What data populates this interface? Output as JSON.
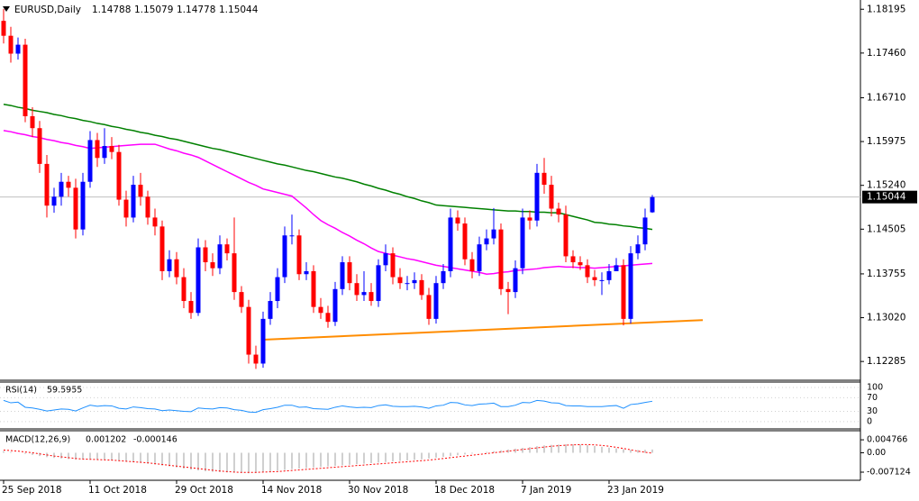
{
  "chart_data": [
    {
      "type": "candlestick",
      "title": "EURUSD,Daily",
      "categories": [
        "25 Sep 2018",
        null,
        null,
        null,
        null,
        null,
        null,
        null,
        null,
        null,
        null,
        null,
        "11 Oct 2018",
        null,
        null,
        null,
        null,
        null,
        null,
        null,
        null,
        null,
        null,
        null,
        "29 Oct 2018",
        null,
        null,
        null,
        null,
        null,
        null,
        null,
        null,
        null,
        null,
        null,
        "14 Nov 2018",
        null,
        null,
        null,
        null,
        null,
        null,
        null,
        null,
        null,
        null,
        null,
        "30 Nov 2018",
        null,
        null,
        null,
        null,
        null,
        null,
        null,
        null,
        null,
        null,
        null,
        "18 Dec 2018",
        null,
        null,
        null,
        null,
        null,
        null,
        null,
        null,
        null,
        null,
        null,
        "7 Jan 2019",
        null,
        null,
        null,
        null,
        null,
        null,
        null,
        null,
        null,
        null,
        null,
        "23 Jan 2019",
        null,
        null,
        null,
        null,
        null,
        null
      ],
      "open": [
        1.18,
        1.1775,
        1.1745,
        1.176,
        1.164,
        1.162,
        1.156,
        1.149,
        1.1505,
        1.153,
        1.152,
        1.145,
        1.153,
        1.16,
        1.157,
        1.159,
        1.158,
        1.15,
        1.147,
        1.1525,
        1.1505,
        1.147,
        1.1455,
        1.138,
        1.14,
        1.137,
        1.133,
        1.131,
        1.142,
        1.1395,
        1.1385,
        1.1425,
        1.141,
        1.1345,
        1.132,
        1.124,
        1.1225,
        1.13,
        1.133,
        1.137,
        1.144,
        1.144,
        1.1375,
        1.138,
        1.132,
        1.131,
        1.1295,
        1.135,
        1.1395,
        1.136,
        1.134,
        1.1345,
        1.133,
        1.139,
        1.141,
        1.137,
        1.136,
        1.136,
        1.1365,
        1.134,
        1.13,
        1.136,
        1.138,
        1.147,
        1.146,
        1.14,
        1.138,
        1.1425,
        1.1435,
        1.145,
        1.135,
        1.1345,
        1.1385,
        1.147,
        1.1465,
        1.1545,
        1.1525,
        1.1485,
        1.1475,
        1.1405,
        1.1395,
        1.139,
        1.137,
        1.1365,
        1.1365,
        1.138,
        1.139,
        1.13,
        1.141,
        1.1425,
        1.14788
      ],
      "high": [
        1.182,
        1.179,
        1.1772,
        1.177,
        1.1655,
        1.1632,
        1.1575,
        1.152,
        1.1545,
        1.154,
        1.1535,
        1.1545,
        1.1615,
        1.1612,
        1.162,
        1.1605,
        1.1592,
        1.1515,
        1.154,
        1.1545,
        1.1515,
        1.1485,
        1.1465,
        1.1415,
        1.1412,
        1.1385,
        1.1345,
        1.1435,
        1.1432,
        1.141,
        1.144,
        1.1435,
        1.147,
        1.1355,
        1.1332,
        1.1255,
        1.1312,
        1.1345,
        1.1385,
        1.1455,
        1.1475,
        1.145,
        1.1395,
        1.139,
        1.1335,
        1.1322,
        1.1362,
        1.1405,
        1.1405,
        1.1375,
        1.138,
        1.136,
        1.14,
        1.1425,
        1.142,
        1.1385,
        1.1372,
        1.1378,
        1.1375,
        1.1352,
        1.1372,
        1.1392,
        1.1485,
        1.1482,
        1.147,
        1.1412,
        1.1438,
        1.145,
        1.1486,
        1.146,
        1.1362,
        1.1398,
        1.1485,
        1.1482,
        1.156,
        1.157,
        1.154,
        1.1495,
        1.149,
        1.1415,
        1.1405,
        1.14,
        1.1382,
        1.1378,
        1.1392,
        1.1402,
        1.14,
        1.1422,
        1.144,
        1.1485,
        1.15079
      ],
      "low": [
        1.1762,
        1.173,
        1.1735,
        1.163,
        1.1605,
        1.1545,
        1.147,
        1.1478,
        1.149,
        1.1505,
        1.1435,
        1.144,
        1.152,
        1.1555,
        1.156,
        1.1568,
        1.149,
        1.1455,
        1.1462,
        1.149,
        1.1458,
        1.144,
        1.1365,
        1.137,
        1.1358,
        1.1318,
        1.13,
        1.1305,
        1.138,
        1.1372,
        1.1375,
        1.1398,
        1.1332,
        1.131,
        1.1225,
        1.1216,
        1.1218,
        1.129,
        1.1318,
        1.136,
        1.1425,
        1.1365,
        1.1365,
        1.131,
        1.13,
        1.1285,
        1.1288,
        1.134,
        1.1348,
        1.133,
        1.133,
        1.1322,
        1.132,
        1.138,
        1.1358,
        1.135,
        1.1348,
        1.135,
        1.1332,
        1.129,
        1.1292,
        1.135,
        1.137,
        1.1448,
        1.139,
        1.1368,
        1.1372,
        1.1415,
        1.1425,
        1.134,
        1.1308,
        1.1335,
        1.1375,
        1.145,
        1.1455,
        1.151,
        1.1472,
        1.1462,
        1.1395,
        1.1385,
        1.1382,
        1.136,
        1.1355,
        1.134,
        1.1358,
        1.138,
        1.1289,
        1.1292,
        1.14,
        1.1415,
        1.14778
      ],
      "close": [
        1.1775,
        1.1745,
        1.176,
        1.164,
        1.162,
        1.156,
        1.149,
        1.1505,
        1.153,
        1.152,
        1.145,
        1.153,
        1.16,
        1.157,
        1.159,
        1.158,
        1.15,
        1.147,
        1.1525,
        1.1505,
        1.147,
        1.1455,
        1.138,
        1.14,
        1.137,
        1.133,
        1.131,
        1.142,
        1.1395,
        1.1385,
        1.1425,
        1.141,
        1.1345,
        1.132,
        1.124,
        1.1225,
        1.13,
        1.133,
        1.137,
        1.144,
        1.144,
        1.1375,
        1.138,
        1.132,
        1.131,
        1.1295,
        1.135,
        1.1395,
        1.136,
        1.134,
        1.1345,
        1.133,
        1.139,
        1.141,
        1.137,
        1.136,
        1.136,
        1.1365,
        1.134,
        1.13,
        1.136,
        1.138,
        1.147,
        1.146,
        1.14,
        1.138,
        1.1425,
        1.1435,
        1.145,
        1.135,
        1.1345,
        1.1385,
        1.147,
        1.1465,
        1.1545,
        1.1525,
        1.1485,
        1.1475,
        1.1405,
        1.1395,
        1.139,
        1.137,
        1.1365,
        1.1365,
        1.138,
        1.139,
        1.13,
        1.141,
        1.1425,
        1.147,
        1.15044
      ],
      "bull_color": "#0000ff",
      "bear_color": "#ff0000",
      "series": [
        {
          "color": "#008000",
          "values": [
            1.166,
            1.1658,
            1.1655,
            1.1653,
            1.165,
            1.1648,
            1.1646,
            1.1643,
            1.1641,
            1.1638,
            1.1636,
            1.1633,
            1.1631,
            1.1628,
            1.1626,
            1.1623,
            1.1621,
            1.1618,
            1.1616,
            1.1613,
            1.1611,
            1.1608,
            1.1606,
            1.1603,
            1.1601,
            1.1598,
            1.1595,
            1.1592,
            1.1589,
            1.1586,
            1.1584,
            1.1581,
            1.1578,
            1.1575,
            1.1572,
            1.1569,
            1.1566,
            1.1563,
            1.156,
            1.1558,
            1.1555,
            1.1552,
            1.1549,
            1.1547,
            1.1544,
            1.1541,
            1.1538,
            1.1536,
            1.1533,
            1.153,
            1.1526,
            1.1523,
            1.1519,
            1.1516,
            1.1512,
            1.1509,
            1.1505,
            1.1502,
            1.1498,
            1.1495,
            1.1491,
            1.149,
            1.1489,
            1.1488,
            1.1487,
            1.1486,
            1.1485,
            1.1484,
            1.1483,
            1.1482,
            1.1481,
            1.1481,
            1.148,
            1.148,
            1.1479,
            1.1479,
            1.1478,
            1.1478,
            1.1475,
            1.1472,
            1.1469,
            1.1466,
            1.1462,
            1.1461,
            1.1459,
            1.1458,
            1.1456,
            1.1455,
            1.1453,
            1.1452,
            1.145
          ]
        },
        {
          "color": "#ff00ff",
          "values": [
            1.1616,
            1.1614,
            1.1611,
            1.1609,
            1.1606,
            1.1604,
            1.1601,
            1.1599,
            1.1596,
            1.1594,
            1.1591,
            1.1589,
            1.1586,
            1.1587,
            1.1588,
            1.1589,
            1.159,
            1.1591,
            1.1592,
            1.1593,
            1.1593,
            1.1593,
            1.1589,
            1.1585,
            1.1582,
            1.1578,
            1.1575,
            1.1571,
            1.1565,
            1.1559,
            1.1553,
            1.1547,
            1.1541,
            1.1535,
            1.1529,
            1.1524,
            1.1518,
            1.1515,
            1.1512,
            1.1509,
            1.1506,
            1.1496,
            1.1486,
            1.1475,
            1.1465,
            1.1458,
            1.1452,
            1.1445,
            1.1439,
            1.1432,
            1.1426,
            1.1419,
            1.1413,
            1.141,
            1.1407,
            1.1404,
            1.1401,
            1.1399,
            1.1396,
            1.1393,
            1.139,
            1.1388,
            1.1386,
            1.1384,
            1.1382,
            1.138,
            1.1378,
            1.1375,
            1.1376,
            1.1378,
            1.1379,
            1.1381,
            1.1382,
            1.1383,
            1.1384,
            1.1386,
            1.1387,
            1.1388,
            1.1387,
            1.1387,
            1.1386,
            1.1386,
            1.1385,
            1.1386,
            1.1387,
            1.1388,
            1.1389,
            1.139,
            1.1391,
            1.1392,
            1.1393
          ]
        }
      ],
      "trendline": {
        "color": "#ff8c00",
        "values": [
          1.1265,
          1.1298
        ]
      },
      "ylim": [
        1.1197,
        1.1835
      ],
      "yticks": [
        1.18195,
        {
          "value": 1.1746,
          "label": "1.17460"
        },
        {
          "value": 1.1671,
          "label": "1.16710"
        },
        1.15975,
        {
          "value": 1.1524,
          "label": "1.15240"
        },
        1.14505,
        1.13755,
        {
          "value": 1.1302,
          "label": "1.13020"
        },
        1.12285
      ]
    },
    {
      "type": "line",
      "title": "RSI(14)",
      "series": [
        {
          "color": "#1e90ff",
          "values": [
            62,
            55,
            57,
            42,
            40,
            36,
            31,
            34,
            37,
            36,
            31,
            40,
            48,
            45,
            47,
            46,
            39,
            37,
            43,
            41,
            38,
            37,
            32,
            34,
            32,
            30,
            29,
            40,
            38,
            37,
            41,
            40,
            35,
            33,
            28,
            27,
            35,
            38,
            42,
            48,
            48,
            42,
            43,
            38,
            37,
            36,
            42,
            46,
            43,
            41,
            42,
            41,
            47,
            49,
            45,
            44,
            44,
            45,
            43,
            39,
            46,
            48,
            56,
            55,
            49,
            47,
            51,
            52,
            54,
            44,
            44,
            48,
            56,
            55,
            62,
            60,
            55,
            54,
            47,
            46,
            46,
            44,
            44,
            44,
            46,
            47,
            39,
            50,
            52,
            56,
            59.5955
          ]
        }
      ],
      "ylim": [
        -19,
        116
      ],
      "yticks": [
        100,
        70,
        30,
        0
      ]
    },
    {
      "type": "macd",
      "title": "MACD(12,26,9)",
      "series": [
        {
          "color": "#c0c0c0",
          "style": "histogram",
          "values": [
            0.0006,
            0.0003,
            0.0,
            -0.0004,
            -0.0008,
            -0.0012,
            -0.0016,
            -0.0019,
            -0.0021,
            -0.0023,
            -0.0025,
            -0.0024,
            -0.0023,
            -0.0024,
            -0.0025,
            -0.0027,
            -0.003,
            -0.0033,
            -0.0035,
            -0.0037,
            -0.004,
            -0.0043,
            -0.0047,
            -0.005,
            -0.0054,
            -0.0058,
            -0.0062,
            -0.0065,
            -0.0068,
            -0.007,
            -0.0071,
            -0.0072,
            -0.0073,
            -0.0074,
            -0.0075,
            -0.0074,
            -0.0072,
            -0.0069,
            -0.0066,
            -0.0063,
            -0.006,
            -0.0058,
            -0.0056,
            -0.0054,
            -0.0052,
            -0.005,
            -0.0048,
            -0.0046,
            -0.0044,
            -0.0042,
            -0.004,
            -0.0038,
            -0.0036,
            -0.0034,
            -0.0032,
            -0.003,
            -0.0028,
            -0.0026,
            -0.0024,
            -0.0021,
            -0.0018,
            -0.0015,
            -0.0012,
            -0.0009,
            -0.0006,
            -0.0003,
            0.0,
            0.0003,
            0.0006,
            0.0009,
            0.0012,
            0.0015,
            0.0018,
            0.0021,
            0.0024,
            0.0027,
            0.0029,
            0.003,
            0.0031,
            0.0031,
            0.003,
            0.0028,
            0.0025,
            0.0022,
            0.0019,
            0.0016,
            0.0013,
            0.0011,
            0.001,
            0.0011,
            0.001202
          ]
        },
        {
          "color": "#ff0000",
          "style": "dotted",
          "values": [
            0.001,
            0.0008,
            0.0006,
            0.0003,
            0.0,
            -0.0004,
            -0.0008,
            -0.0012,
            -0.0015,
            -0.0018,
            -0.0021,
            -0.0023,
            -0.0024,
            -0.0025,
            -0.0026,
            -0.0027,
            -0.0029,
            -0.0031,
            -0.0033,
            -0.0035,
            -0.0037,
            -0.004,
            -0.0043,
            -0.0046,
            -0.0049,
            -0.0052,
            -0.0055,
            -0.0058,
            -0.0061,
            -0.0064,
            -0.0067,
            -0.0069,
            -0.0071,
            -0.0072,
            -0.0072,
            -0.0072,
            -0.0071,
            -0.007,
            -0.0069,
            -0.0067,
            -0.0065,
            -0.0063,
            -0.0061,
            -0.0059,
            -0.0057,
            -0.0055,
            -0.0053,
            -0.0051,
            -0.0049,
            -0.0047,
            -0.0045,
            -0.0043,
            -0.0041,
            -0.0039,
            -0.0037,
            -0.0035,
            -0.0033,
            -0.0031,
            -0.0029,
            -0.0027,
            -0.0024,
            -0.0021,
            -0.0018,
            -0.0015,
            -0.0012,
            -0.0009,
            -0.0006,
            -0.0003,
            0.0,
            0.0003,
            0.0006,
            0.0009,
            0.0012,
            0.0015,
            0.0018,
            0.0021,
            0.0024,
            0.0026,
            0.0028,
            0.0029,
            0.003,
            0.003,
            0.0029,
            0.0027,
            0.0024,
            0.002,
            0.0016,
            0.0011,
            0.0006,
            0.0002,
            -0.000146
          ]
        }
      ],
      "ylim": [
        -0.0101,
        0.0081
      ],
      "yticks": [
        0.004766,
        {
          "value": 0,
          "label": "0.00"
        },
        -0.007124
      ]
    }
  ]
}
